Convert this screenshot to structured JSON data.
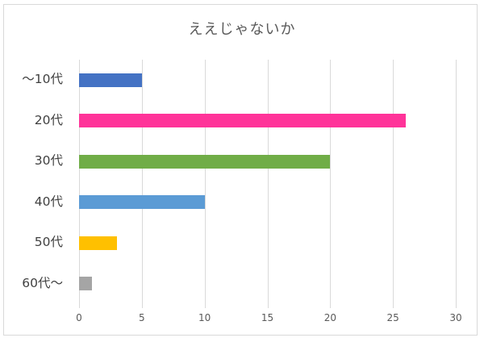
{
  "chart_data": {
    "type": "bar",
    "orientation": "horizontal",
    "title": "ええじゃないか",
    "xlabel": "",
    "ylabel": "",
    "categories": [
      "〜10代",
      "20代",
      "30代",
      "40代",
      "50代",
      "60代〜"
    ],
    "values": [
      5,
      26,
      20,
      10,
      3,
      1
    ],
    "colors": [
      "#4472c4",
      "#ff3399",
      "#70ad47",
      "#5b9bd5",
      "#ffc000",
      "#a5a5a5"
    ],
    "xlim": [
      0,
      30
    ],
    "xticks": [
      "0",
      "5",
      "10",
      "15",
      "20",
      "25",
      "30"
    ],
    "grid": true,
    "legend": false
  }
}
